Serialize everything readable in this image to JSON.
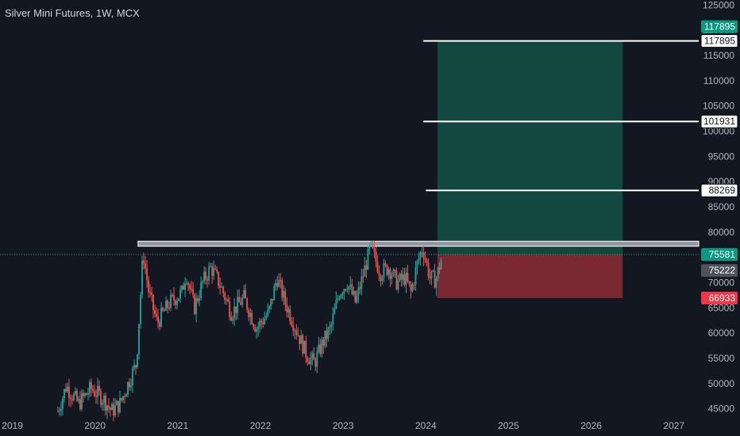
{
  "title": "Silver Mini Futures, 1W, MCX",
  "colors": {
    "background": "#131722",
    "axis_text": "#b2b5be",
    "up": "#26a69a",
    "down": "#ef5350",
    "target_zone": "#134840",
    "stop_zone": "#7a2831",
    "resistance": "#9598a1",
    "level_line": "#ffffff",
    "target_badge": "#089981",
    "stop_badge": "#f23645",
    "last_price_badge": "#089981",
    "prev_price_badge": "#50535e",
    "entry_line": "#26a69a"
  },
  "chart_data": {
    "type": "candlestick",
    "symbol": "Silver Mini Futures",
    "interval": "1W",
    "exchange": "MCX",
    "x_ticks": [
      "2019",
      "2020",
      "2021",
      "2022",
      "2023",
      "2024",
      "2025",
      "2026",
      "2027"
    ],
    "y_ticks": [
      "45000",
      "50000",
      "55000",
      "60000",
      "65000",
      "70000",
      "75000",
      "80000",
      "85000",
      "90000",
      "95000",
      "100000",
      "105000",
      "110000",
      "115000",
      "120000",
      "125000"
    ],
    "ylim": [
      44000,
      126000
    ],
    "xlim": [
      2018.85,
      2027.3
    ],
    "price_keypoints": [
      {
        "t": 2019.55,
        "p": 44500
      },
      {
        "t": 2019.65,
        "p": 49500
      },
      {
        "t": 2019.8,
        "p": 46000
      },
      {
        "t": 2019.95,
        "p": 49000
      },
      {
        "t": 2020.1,
        "p": 47000
      },
      {
        "t": 2020.2,
        "p": 44500
      },
      {
        "t": 2020.3,
        "p": 46000
      },
      {
        "t": 2020.4,
        "p": 50000
      },
      {
        "t": 2020.5,
        "p": 54000
      },
      {
        "t": 2020.58,
        "p": 76000
      },
      {
        "t": 2020.65,
        "p": 68000
      },
      {
        "t": 2020.75,
        "p": 62000
      },
      {
        "t": 2020.9,
        "p": 66000
      },
      {
        "t": 2021.05,
        "p": 68000
      },
      {
        "t": 2021.1,
        "p": 72000
      },
      {
        "t": 2021.2,
        "p": 65000
      },
      {
        "t": 2021.3,
        "p": 70000
      },
      {
        "t": 2021.4,
        "p": 73000
      },
      {
        "t": 2021.5,
        "p": 70000
      },
      {
        "t": 2021.65,
        "p": 64000
      },
      {
        "t": 2021.8,
        "p": 67000
      },
      {
        "t": 2021.95,
        "p": 61000
      },
      {
        "t": 2022.1,
        "p": 64000
      },
      {
        "t": 2022.2,
        "p": 71000
      },
      {
        "t": 2022.3,
        "p": 66000
      },
      {
        "t": 2022.45,
        "p": 60000
      },
      {
        "t": 2022.55,
        "p": 56000
      },
      {
        "t": 2022.65,
        "p": 54000
      },
      {
        "t": 2022.75,
        "p": 58000
      },
      {
        "t": 2022.85,
        "p": 61000
      },
      {
        "t": 2022.95,
        "p": 68000
      },
      {
        "t": 2023.05,
        "p": 70000
      },
      {
        "t": 2023.15,
        "p": 66000
      },
      {
        "t": 2023.25,
        "p": 72000
      },
      {
        "t": 2023.33,
        "p": 77000
      },
      {
        "t": 2023.45,
        "p": 72000
      },
      {
        "t": 2023.55,
        "p": 73000
      },
      {
        "t": 2023.65,
        "p": 70000
      },
      {
        "t": 2023.75,
        "p": 71000
      },
      {
        "t": 2023.82,
        "p": 68000
      },
      {
        "t": 2023.9,
        "p": 74000
      },
      {
        "t": 2023.96,
        "p": 77000
      },
      {
        "t": 2024.05,
        "p": 71000
      },
      {
        "t": 2024.12,
        "p": 70500
      },
      {
        "t": 2024.2,
        "p": 75500
      }
    ],
    "resistance_zone": {
      "start": 2020.5,
      "end": 2027.3,
      "low": 77200,
      "high": 78200
    },
    "position": {
      "type": "long",
      "start": 2024.14,
      "end": 2026.38,
      "entry": 75581,
      "target": 117895,
      "stop": 66933
    },
    "levels": [
      {
        "value": 117895,
        "label": "117895",
        "start": 2023.97
      },
      {
        "value": 101931,
        "label": "101931",
        "start": 2023.97
      },
      {
        "value": 88269,
        "label": "88269",
        "start": 2024.0
      }
    ],
    "price_badges": [
      {
        "value": 117895,
        "label": "117895",
        "role": "target"
      },
      {
        "value": 75581,
        "label": "75581",
        "role": "last"
      },
      {
        "value": 75222,
        "label": "75222",
        "role": "prev"
      },
      {
        "value": 66933,
        "label": "66933",
        "role": "stop"
      }
    ]
  }
}
